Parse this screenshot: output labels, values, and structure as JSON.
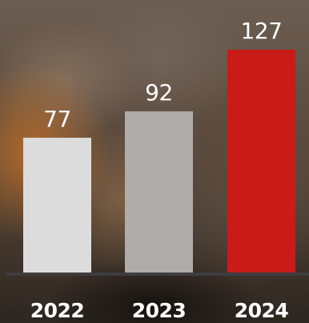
{
  "chart_data": {
    "type": "bar",
    "categories": [
      "2022",
      "2023",
      "2024"
    ],
    "values": [
      77,
      92,
      127
    ],
    "value_labels": [
      "77",
      "92",
      "127"
    ],
    "colors": [
      "#dcdcdc",
      "#b0acab",
      "#c91b18"
    ],
    "axis_color": "#3e3d40",
    "ylim": [
      0,
      127
    ],
    "grid": false,
    "legend": "none",
    "title": "",
    "xlabel": "",
    "ylabel": ""
  }
}
